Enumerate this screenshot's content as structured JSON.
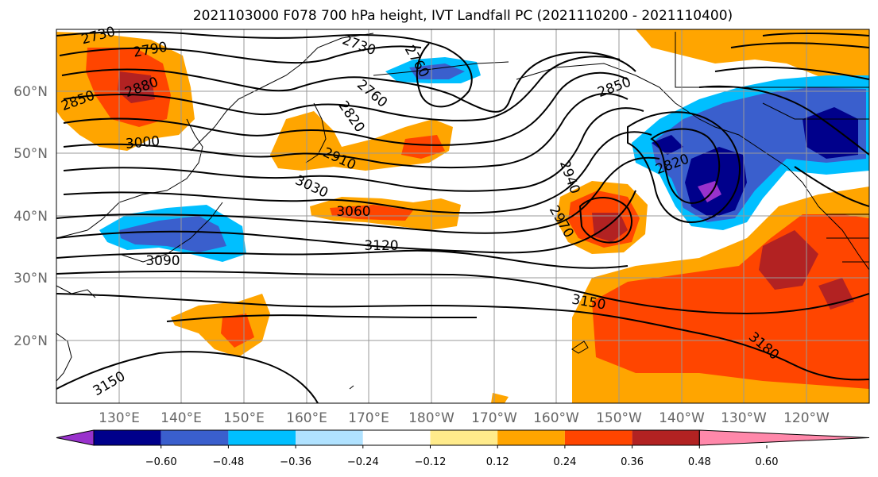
{
  "title": "2021103000 F078 700 hPa height, IVT Landfall PC (2021110200 - 2021110400)",
  "lat_labels": [
    "60°N",
    "50°N",
    "40°N",
    "30°N",
    "20°N"
  ],
  "lon_labels": [
    "130°E",
    "140°E",
    "150°E",
    "160°E",
    "170°E",
    "180°W",
    "170°W",
    "160°W",
    "150°W",
    "140°W",
    "130°W",
    "120°W"
  ],
  "contour_labels": [
    "2730",
    "2790",
    "2730",
    "2760",
    "2760",
    "2850",
    "2880",
    "2820",
    "2850",
    "3000",
    "2910",
    "2940",
    "2820",
    "3030",
    "3060",
    "2970",
    "3120",
    "3090",
    "3150",
    "3180",
    "3150"
  ],
  "colorbar": {
    "ticks": [
      "−0.60",
      "−0.48",
      "−0.36",
      "−0.24",
      "−0.12",
      "0.12",
      "0.24",
      "0.36",
      "0.48",
      "0.60"
    ],
    "colors": [
      "#9932cc",
      "#00008b",
      "#3a5fcd",
      "#00bfff",
      "#b0e2ff",
      "#ffffff",
      "#ffeb8b",
      "#ffa500",
      "#ff4500",
      "#b22222",
      "#ff88aa"
    ]
  }
}
